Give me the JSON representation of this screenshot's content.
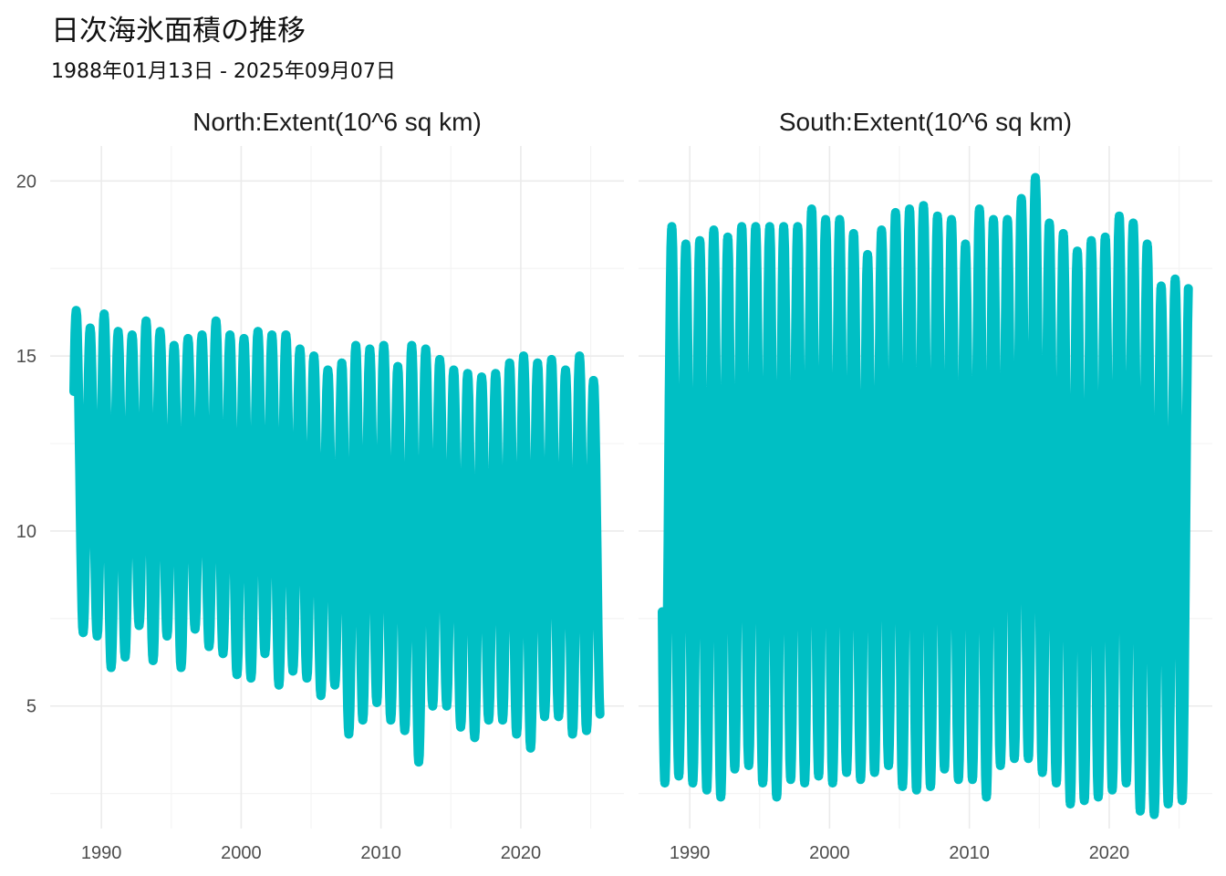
{
  "title": "日次海氷面積の推移",
  "subtitle": "1988年01月13日 - 2025年09月07日",
  "colors": {
    "series": "#00BFC4",
    "grid_major": "#ebebeb",
    "grid_minor": "#f4f4f4",
    "text": "#4d4d4d"
  },
  "chart_data": [
    {
      "type": "line",
      "panel": "North:Extent(10^6 sq km)",
      "x_range": [
        "1988-01-13",
        "2025-09-07"
      ],
      "x_ticks": [
        1990,
        2000,
        2010,
        2020
      ],
      "y_ticks": [
        5,
        10,
        15,
        20
      ],
      "ylim": [
        1.5,
        21
      ],
      "grid": true,
      "annual_max": [
        {
          "year": 1988,
          "value": 16.3
        },
        {
          "year": 1989,
          "value": 15.8
        },
        {
          "year": 1990,
          "value": 16.2
        },
        {
          "year": 1991,
          "value": 15.7
        },
        {
          "year": 1992,
          "value": 15.6
        },
        {
          "year": 1993,
          "value": 16.0
        },
        {
          "year": 1994,
          "value": 15.7
        },
        {
          "year": 1995,
          "value": 15.3
        },
        {
          "year": 1996,
          "value": 15.5
        },
        {
          "year": 1997,
          "value": 15.6
        },
        {
          "year": 1998,
          "value": 16.0
        },
        {
          "year": 1999,
          "value": 15.6
        },
        {
          "year": 2000,
          "value": 15.5
        },
        {
          "year": 2001,
          "value": 15.7
        },
        {
          "year": 2002,
          "value": 15.6
        },
        {
          "year": 2003,
          "value": 15.6
        },
        {
          "year": 2004,
          "value": 15.2
        },
        {
          "year": 2005,
          "value": 15.0
        },
        {
          "year": 2006,
          "value": 14.6
        },
        {
          "year": 2007,
          "value": 14.8
        },
        {
          "year": 2008,
          "value": 15.3
        },
        {
          "year": 2009,
          "value": 15.2
        },
        {
          "year": 2010,
          "value": 15.3
        },
        {
          "year": 2011,
          "value": 14.7
        },
        {
          "year": 2012,
          "value": 15.3
        },
        {
          "year": 2013,
          "value": 15.2
        },
        {
          "year": 2014,
          "value": 14.9
        },
        {
          "year": 2015,
          "value": 14.6
        },
        {
          "year": 2016,
          "value": 14.5
        },
        {
          "year": 2017,
          "value": 14.4
        },
        {
          "year": 2018,
          "value": 14.5
        },
        {
          "year": 2019,
          "value": 14.8
        },
        {
          "year": 2020,
          "value": 15.0
        },
        {
          "year": 2021,
          "value": 14.8
        },
        {
          "year": 2022,
          "value": 14.9
        },
        {
          "year": 2023,
          "value": 14.6
        },
        {
          "year": 2024,
          "value": 15.0
        },
        {
          "year": 2025,
          "value": 14.3
        }
      ],
      "annual_min": [
        {
          "year": 1988,
          "value": 7.1
        },
        {
          "year": 1989,
          "value": 7.0
        },
        {
          "year": 1990,
          "value": 6.1
        },
        {
          "year": 1991,
          "value": 6.4
        },
        {
          "year": 1992,
          "value": 7.3
        },
        {
          "year": 1993,
          "value": 6.3
        },
        {
          "year": 1994,
          "value": 7.0
        },
        {
          "year": 1995,
          "value": 6.1
        },
        {
          "year": 1996,
          "value": 7.2
        },
        {
          "year": 1997,
          "value": 6.7
        },
        {
          "year": 1998,
          "value": 6.5
        },
        {
          "year": 1999,
          "value": 5.9
        },
        {
          "year": 2000,
          "value": 5.8
        },
        {
          "year": 2001,
          "value": 6.5
        },
        {
          "year": 2002,
          "value": 5.6
        },
        {
          "year": 2003,
          "value": 6.0
        },
        {
          "year": 2004,
          "value": 5.8
        },
        {
          "year": 2005,
          "value": 5.3
        },
        {
          "year": 2006,
          "value": 5.6
        },
        {
          "year": 2007,
          "value": 4.2
        },
        {
          "year": 2008,
          "value": 4.6
        },
        {
          "year": 2009,
          "value": 5.1
        },
        {
          "year": 2010,
          "value": 4.6
        },
        {
          "year": 2011,
          "value": 4.3
        },
        {
          "year": 2012,
          "value": 3.4
        },
        {
          "year": 2013,
          "value": 5.0
        },
        {
          "year": 2014,
          "value": 5.0
        },
        {
          "year": 2015,
          "value": 4.4
        },
        {
          "year": 2016,
          "value": 4.1
        },
        {
          "year": 2017,
          "value": 4.6
        },
        {
          "year": 2018,
          "value": 4.6
        },
        {
          "year": 2019,
          "value": 4.2
        },
        {
          "year": 2020,
          "value": 3.8
        },
        {
          "year": 2021,
          "value": 4.7
        },
        {
          "year": 2022,
          "value": 4.7
        },
        {
          "year": 2023,
          "value": 4.2
        },
        {
          "year": 2024,
          "value": 4.3
        },
        {
          "year": 2025,
          "value": 4.6
        }
      ]
    },
    {
      "type": "line",
      "panel": "South:Extent(10^6 sq km)",
      "x_range": [
        "1988-01-13",
        "2025-09-07"
      ],
      "x_ticks": [
        1990,
        2000,
        2010,
        2020
      ],
      "y_ticks": [
        5,
        10,
        15,
        20
      ],
      "ylim": [
        1.5,
        21
      ],
      "grid": true,
      "annual_max": [
        {
          "year": 1988,
          "value": 18.7
        },
        {
          "year": 1989,
          "value": 18.2
        },
        {
          "year": 1990,
          "value": 18.3
        },
        {
          "year": 1991,
          "value": 18.6
        },
        {
          "year": 1992,
          "value": 18.4
        },
        {
          "year": 1993,
          "value": 18.7
        },
        {
          "year": 1994,
          "value": 18.7
        },
        {
          "year": 1995,
          "value": 18.7
        },
        {
          "year": 1996,
          "value": 18.7
        },
        {
          "year": 1997,
          "value": 18.7
        },
        {
          "year": 1998,
          "value": 19.2
        },
        {
          "year": 1999,
          "value": 18.9
        },
        {
          "year": 2000,
          "value": 18.9
        },
        {
          "year": 2001,
          "value": 18.5
        },
        {
          "year": 2002,
          "value": 17.9
        },
        {
          "year": 2003,
          "value": 18.6
        },
        {
          "year": 2004,
          "value": 19.1
        },
        {
          "year": 2005,
          "value": 19.2
        },
        {
          "year": 2006,
          "value": 19.3
        },
        {
          "year": 2007,
          "value": 19.0
        },
        {
          "year": 2008,
          "value": 18.9
        },
        {
          "year": 2009,
          "value": 18.2
        },
        {
          "year": 2010,
          "value": 19.2
        },
        {
          "year": 2011,
          "value": 18.9
        },
        {
          "year": 2012,
          "value": 18.9
        },
        {
          "year": 2013,
          "value": 19.5
        },
        {
          "year": 2014,
          "value": 20.1
        },
        {
          "year": 2015,
          "value": 18.8
        },
        {
          "year": 2016,
          "value": 18.5
        },
        {
          "year": 2017,
          "value": 18.0
        },
        {
          "year": 2018,
          "value": 18.3
        },
        {
          "year": 2019,
          "value": 18.4
        },
        {
          "year": 2020,
          "value": 19.0
        },
        {
          "year": 2021,
          "value": 18.8
        },
        {
          "year": 2022,
          "value": 18.2
        },
        {
          "year": 2023,
          "value": 17.0
        },
        {
          "year": 2024,
          "value": 17.2
        },
        {
          "year": 2025,
          "value": 17.5
        }
      ],
      "annual_min": [
        {
          "year": 1988,
          "value": 2.8
        },
        {
          "year": 1989,
          "value": 3.0
        },
        {
          "year": 1990,
          "value": 2.8
        },
        {
          "year": 1991,
          "value": 2.6
        },
        {
          "year": 1992,
          "value": 2.4
        },
        {
          "year": 1993,
          "value": 3.2
        },
        {
          "year": 1994,
          "value": 3.3
        },
        {
          "year": 1995,
          "value": 2.8
        },
        {
          "year": 1996,
          "value": 2.4
        },
        {
          "year": 1997,
          "value": 2.9
        },
        {
          "year": 1998,
          "value": 2.8
        },
        {
          "year": 1999,
          "value": 3.0
        },
        {
          "year": 2000,
          "value": 2.8
        },
        {
          "year": 2001,
          "value": 3.1
        },
        {
          "year": 2002,
          "value": 2.9
        },
        {
          "year": 2003,
          "value": 3.1
        },
        {
          "year": 2004,
          "value": 3.3
        },
        {
          "year": 2005,
          "value": 2.7
        },
        {
          "year": 2006,
          "value": 2.6
        },
        {
          "year": 2007,
          "value": 2.7
        },
        {
          "year": 2008,
          "value": 3.2
        },
        {
          "year": 2009,
          "value": 2.9
        },
        {
          "year": 2010,
          "value": 2.9
        },
        {
          "year": 2011,
          "value": 2.4
        },
        {
          "year": 2012,
          "value": 3.3
        },
        {
          "year": 2013,
          "value": 3.5
        },
        {
          "year": 2014,
          "value": 3.5
        },
        {
          "year": 2015,
          "value": 3.1
        },
        {
          "year": 2016,
          "value": 2.8
        },
        {
          "year": 2017,
          "value": 2.2
        },
        {
          "year": 2018,
          "value": 2.3
        },
        {
          "year": 2019,
          "value": 2.4
        },
        {
          "year": 2020,
          "value": 2.6
        },
        {
          "year": 2021,
          "value": 2.8
        },
        {
          "year": 2022,
          "value": 2.0
        },
        {
          "year": 2023,
          "value": 1.9
        },
        {
          "year": 2024,
          "value": 2.2
        },
        {
          "year": 2025,
          "value": 2.3
        }
      ]
    }
  ]
}
